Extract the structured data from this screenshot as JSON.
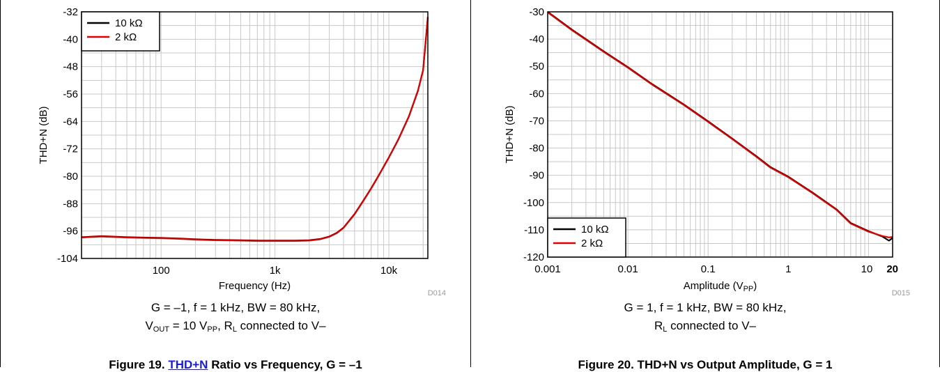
{
  "colors": {
    "series_10k": "#000000",
    "series_2k": "#e00000",
    "grid": "#c8c8c8",
    "tag": "#9a9a9a",
    "link": "#1a1ae6"
  },
  "figures": [
    {
      "tag": "D014",
      "caption_line1": "G = –1, f = 1 kHz, BW = 80 kHz,",
      "caption_line2": {
        "v": "V",
        "v_sub": "OUT",
        "mid": " = 10 V",
        "pp_sub": "PP",
        "mid2": ", R",
        "l_sub": "L",
        "end": " connected to V–"
      },
      "title": {
        "prefix": "Figure 19. ",
        "link": "THD+N",
        "suffix": " Ratio vs Frequency, G = –1"
      }
    },
    {
      "tag": "D015",
      "caption_line1": "G = 1, f = 1 kHz, BW = 80 kHz,",
      "caption_line2": {
        "r": "R",
        "l_sub": "L",
        "end": " connected to V–"
      },
      "title": {
        "text": "Figure 20. THD+N vs Output Amplitude, G = 1"
      }
    }
  ],
  "chart_data": [
    {
      "type": "line",
      "xscale": "log",
      "xlim": [
        20,
        22000
      ],
      "ylim": [
        -104,
        -32
      ],
      "yticks": [
        -32,
        -40,
        -48,
        -56,
        -64,
        -72,
        -80,
        -88,
        -96,
        -104
      ],
      "ytick_labels": [
        "-32",
        "-40",
        "-48",
        "-56",
        "-64",
        "-72",
        "-80",
        "-88",
        "-96",
        "-104"
      ],
      "xticks": [
        100,
        1000,
        10000
      ],
      "xtick_labels": [
        "100",
        "1k",
        "10k"
      ],
      "xlabel": "Frequency (Hz)",
      "ylabel": "THD+N (dB)",
      "grid": true,
      "legend_position": "top-left",
      "series": [
        {
          "name": "10 kΩ",
          "color": "#000000",
          "x": [
            20,
            30,
            50,
            70,
            100,
            150,
            200,
            300,
            500,
            700,
            1000,
            1500,
            2000,
            2500,
            3000,
            3500,
            4000,
            5000,
            6000,
            7000,
            8000,
            10000,
            12000,
            15000,
            18000,
            20000,
            22000
          ],
          "y": [
            -97.8,
            -97.5,
            -97.8,
            -97.9,
            -98.0,
            -98.2,
            -98.4,
            -98.6,
            -98.7,
            -98.8,
            -98.8,
            -98.8,
            -98.7,
            -98.3,
            -97.6,
            -96.5,
            -95.0,
            -91.0,
            -87.0,
            -83.5,
            -80.2,
            -74.5,
            -69.5,
            -62.5,
            -55.0,
            -49.0,
            -33.5
          ]
        },
        {
          "name": "2 kΩ",
          "color": "#e00000",
          "x": [
            20,
            30,
            50,
            70,
            100,
            150,
            200,
            300,
            500,
            700,
            1000,
            1500,
            2000,
            2500,
            3000,
            3500,
            4000,
            5000,
            6000,
            7000,
            8000,
            10000,
            12000,
            15000,
            18000,
            20000,
            22000
          ],
          "y": [
            -97.9,
            -97.6,
            -97.9,
            -98.0,
            -98.1,
            -98.3,
            -98.5,
            -98.7,
            -98.8,
            -98.9,
            -98.9,
            -98.9,
            -98.8,
            -98.4,
            -97.7,
            -96.6,
            -95.1,
            -91.1,
            -87.1,
            -83.6,
            -80.3,
            -74.6,
            -69.6,
            -62.6,
            -55.1,
            -49.1,
            -33.6
          ]
        }
      ]
    },
    {
      "type": "line",
      "xscale": "log",
      "xlim": [
        0.001,
        20
      ],
      "ylim": [
        -120,
        -30
      ],
      "yticks": [
        -30,
        -40,
        -50,
        -60,
        -70,
        -80,
        -90,
        -100,
        -110,
        -120
      ],
      "ytick_labels": [
        "-30",
        "-40",
        "-50",
        "-60",
        "-70",
        "-80",
        "-90",
        "-100",
        "-110",
        "-120"
      ],
      "xticks": [
        0.001,
        0.01,
        0.1,
        1,
        10,
        20
      ],
      "xtick_labels": [
        "0.001",
        "0.01",
        "0.1",
        "1",
        "10",
        "20"
      ],
      "xlabel": "Amplitude (VPP)",
      "ylabel": "THD+N (dB)",
      "grid": true,
      "legend_position": "bottom-left",
      "series": [
        {
          "name": "10 kΩ",
          "color": "#000000",
          "x": [
            0.001,
            0.002,
            0.005,
            0.01,
            0.02,
            0.05,
            0.1,
            0.2,
            0.4,
            0.6,
            1,
            2,
            4,
            6,
            10,
            15,
            18,
            20
          ],
          "y": [
            -30,
            -36.5,
            -44.5,
            -50.3,
            -56.5,
            -64,
            -70.2,
            -76.5,
            -83,
            -87,
            -90.5,
            -96.3,
            -102.5,
            -107.5,
            -110.5,
            -112.5,
            -114,
            -113
          ]
        },
        {
          "name": "2 kΩ",
          "color": "#e00000",
          "x": [
            0.001,
            0.002,
            0.005,
            0.01,
            0.02,
            0.05,
            0.1,
            0.2,
            0.4,
            0.6,
            1,
            2,
            4,
            6,
            10,
            15,
            18,
            20
          ],
          "y": [
            -30.2,
            -36.7,
            -44.7,
            -50.5,
            -56.7,
            -64.2,
            -70.4,
            -76.7,
            -83.2,
            -87.2,
            -90.7,
            -96.5,
            -102.7,
            -107.7,
            -110.7,
            -112.3,
            -112.8,
            -112.6
          ]
        }
      ]
    }
  ]
}
